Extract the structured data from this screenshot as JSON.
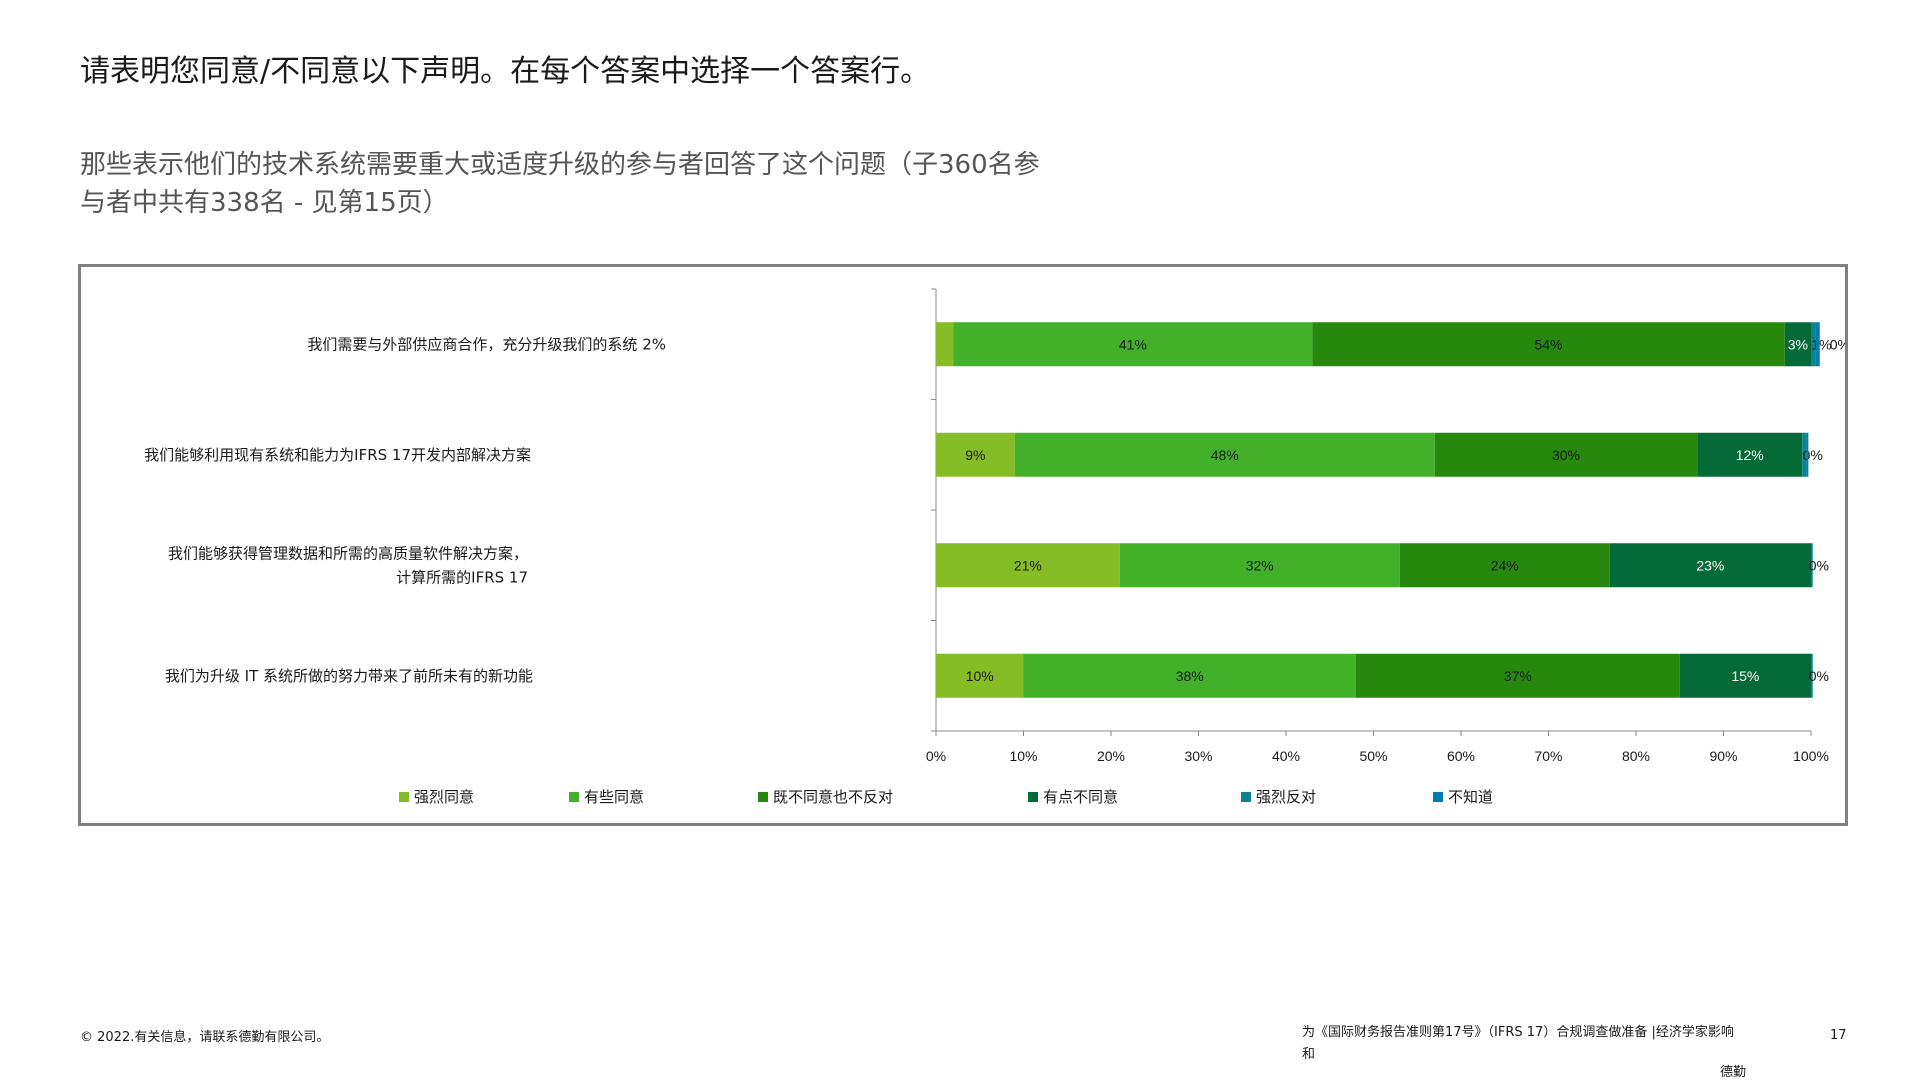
{
  "header": {
    "title": "请表明您同意/不同意以下声明。在每个答案中选择一个答案行。",
    "subtitle": "那些表示他们的技术系统需要重大或适度升级的参与者回答了这个问题（子360名参与者中共有338名 - 见第15页）"
  },
  "chart_data": {
    "type": "bar",
    "orientation": "horizontal",
    "stacked": true,
    "categories": [
      "我们需要与外部供应商合作，充分升级我们的系统 2%",
      "我们能够利用现有系统和能力为IFRS 17开发内部解决方案",
      "我们能够获得管理数据和所需的高质量软件解决方案，计算所需的IFRS 17",
      "我们为升级 IT 系统所做的努力带来了前所未有的新功能"
    ],
    "category_lines": [
      [
        "我们需要与外部供应商合作，充分升级我们的系统 2%"
      ],
      [
        "我们能够利用现有系统和能力为IFRS 17开发内部解决方案"
      ],
      [
        "我们能够获得管理数据和所需的高质量软件解决方案，",
        "计算所需的IFRS 17"
      ],
      [
        "我们为升级 IT 系统所做的努力带来了前所未有的新功能"
      ]
    ],
    "series": [
      {
        "name": "强烈同意",
        "color": "#86bc25",
        "values": [
          2,
          9,
          21,
          10
        ],
        "labels": [
          "",
          "9%",
          "21%",
          "10%"
        ]
      },
      {
        "name": "有些同意",
        "color": "#43b02a",
        "values": [
          41,
          48,
          32,
          38
        ],
        "labels": [
          "41%",
          "48%",
          "32%",
          "38%"
        ]
      },
      {
        "name": "既不同意也不反对",
        "color": "#26890d",
        "values": [
          54,
          30,
          24,
          37
        ],
        "labels": [
          "54%",
          "30%",
          "24%",
          "37%"
        ]
      },
      {
        "name": "有点不同意",
        "color": "#046a38",
        "values": [
          3,
          12,
          23,
          15
        ],
        "labels": [
          "3%",
          "12%",
          "23%",
          "15%"
        ]
      },
      {
        "name": "强烈反对",
        "color": "#0d8390",
        "values": [
          0.5,
          0.5,
          0.2,
          0.2
        ],
        "labels": [
          "1%",
          "0%",
          "0%",
          "0%"
        ]
      },
      {
        "name": "不知道",
        "color": "#007cb0",
        "values": [
          0.5,
          0.2,
          0,
          0
        ],
        "labels": [
          "0%",
          "",
          "",
          ""
        ]
      }
    ],
    "x_ticks": [
      "0%",
      "10%",
      "20%",
      "30%",
      "40%",
      "50%",
      "60%",
      "70%",
      "80%",
      "90%",
      "100%"
    ],
    "xlim": [
      0,
      100
    ],
    "legend_position": "bottom",
    "grid": false
  },
  "footer": {
    "copyright": "© 2022.有关信息，请联系德勤有限公司。",
    "source_line1": "为《国际财务报告准则第17号》（IFRS 17）合规调查做准备 |经济学家影响",
    "source_line2": "和",
    "brand": "德勤",
    "page_number": "17"
  }
}
